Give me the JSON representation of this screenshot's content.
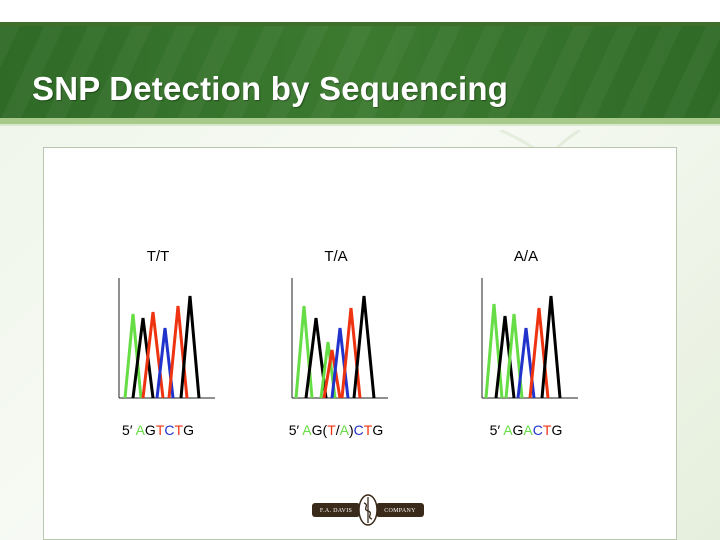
{
  "slide": {
    "title": "SNP Detection by Sequencing"
  },
  "colors": {
    "title_band": "#3b7a2f",
    "base_A": "#66dd44",
    "base_G": "#000000",
    "base_T": "#ee3311",
    "base_C": "#2233cc"
  },
  "panels": [
    {
      "genotype": "T/T",
      "sequence_prefix": "5′ ",
      "bases": [
        "A",
        "G",
        "T",
        "C",
        "T",
        "G"
      ]
    },
    {
      "genotype": "T/A",
      "sequence_prefix": "5′ ",
      "bases": [
        "A",
        "G",
        "(",
        "T",
        "/",
        "A",
        ")",
        "C",
        "T",
        "G"
      ]
    },
    {
      "genotype": "A/A",
      "sequence_prefix": "5′ ",
      "bases": [
        "A",
        "G",
        "A",
        "C",
        "T",
        "G"
      ]
    }
  ],
  "logo": {
    "left_text": "F.A. DAVIS",
    "right_text": "COMPANY"
  }
}
